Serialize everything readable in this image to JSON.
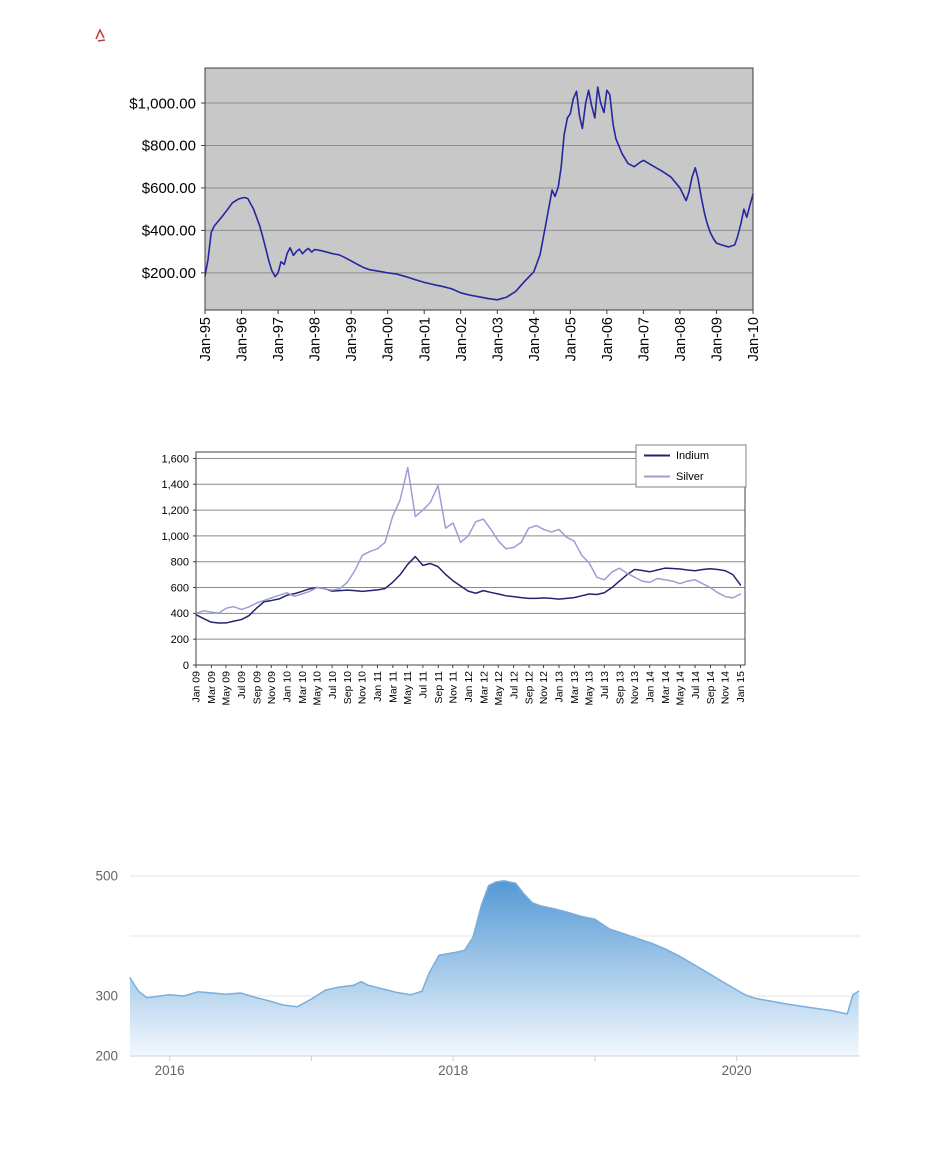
{
  "page": {
    "background": "#ffffff"
  },
  "artifact": {
    "color": "#c43a3a"
  },
  "chart_data": [
    {
      "name": "dollar-price-line-chart",
      "type": "line",
      "title": "",
      "xlabel": "",
      "ylabel": "",
      "xlim": [
        1995,
        2010
      ],
      "ylim": [
        25,
        1165
      ],
      "plot_bg": "#c8c8c8",
      "grid_color": "#909090",
      "border_color": "#3c3c3c",
      "tick_label_color": "#000000",
      "x_tick_marks": true,
      "y_tick_marks": true,
      "y_ticks": [
        {
          "v": 200,
          "label": "$200.00"
        },
        {
          "v": 400,
          "label": "$400.00"
        },
        {
          "v": 600,
          "label": "$600.00"
        },
        {
          "v": 800,
          "label": "$800.00"
        },
        {
          "v": 1000,
          "label": "$1,000.00"
        }
      ],
      "x_ticks": [
        {
          "v": 1995,
          "label": "Jan-95"
        },
        {
          "v": 1996,
          "label": "Jan-96"
        },
        {
          "v": 1997,
          "label": "Jan-97"
        },
        {
          "v": 1998,
          "label": "Jan-98"
        },
        {
          "v": 1999,
          "label": "Jan-99"
        },
        {
          "v": 2000,
          "label": "Jan-00"
        },
        {
          "v": 2001,
          "label": "Jan-01"
        },
        {
          "v": 2002,
          "label": "Jan-02"
        },
        {
          "v": 2003,
          "label": "Jan-03"
        },
        {
          "v": 2004,
          "label": "Jan-04"
        },
        {
          "v": 2005,
          "label": "Jan-05"
        },
        {
          "v": 2006,
          "label": "Jan-06"
        },
        {
          "v": 2007,
          "label": "Jan-07"
        },
        {
          "v": 2008,
          "label": "Jan-08"
        },
        {
          "v": 2009,
          "label": "Jan-09"
        },
        {
          "v": 2010,
          "label": "Jan-10"
        }
      ],
      "series": [
        {
          "name": "price",
          "color": "#2626a0",
          "width": 1.6,
          "x": [
            1995,
            1995.08,
            1995.17,
            1995.25,
            1995.42,
            1995.58,
            1995.75,
            1995.92,
            1996,
            1996.08,
            1996.17,
            1996.33,
            1996.5,
            1996.58,
            1996.67,
            1996.75,
            1996.83,
            1996.92,
            1997,
            1997.08,
            1997.17,
            1997.25,
            1997.33,
            1997.42,
            1997.5,
            1997.58,
            1997.67,
            1997.75,
            1997.83,
            1997.92,
            1998,
            1998.17,
            1998.33,
            1998.5,
            1998.67,
            1998.83,
            1999,
            1999.17,
            1999.33,
            1999.5,
            1999.75,
            2000,
            2000.25,
            2000.5,
            2000.75,
            2001,
            2001.25,
            2001.5,
            2001.75,
            2002,
            2002.25,
            2002.5,
            2002.75,
            2003,
            2003.25,
            2003.5,
            2003.75,
            2004,
            2004.17,
            2004.33,
            2004.5,
            2004.58,
            2004.67,
            2004.75,
            2004.83,
            2004.92,
            2005,
            2005.08,
            2005.17,
            2005.25,
            2005.33,
            2005.42,
            2005.5,
            2005.58,
            2005.67,
            2005.75,
            2005.83,
            2005.92,
            2006,
            2006.08,
            2006.17,
            2006.25,
            2006.42,
            2006.58,
            2006.75,
            2006.92,
            2007,
            2007.25,
            2007.5,
            2007.75,
            2008,
            2008.08,
            2008.17,
            2008.25,
            2008.33,
            2008.42,
            2008.5,
            2008.58,
            2008.67,
            2008.75,
            2008.83,
            2008.92,
            2009,
            2009.17,
            2009.33,
            2009.5,
            2009.58,
            2009.67,
            2009.75,
            2009.83,
            2009.92,
            2010
          ],
          "y": [
            185,
            260,
            390,
            420,
            455,
            490,
            530,
            548,
            552,
            555,
            550,
            500,
            420,
            370,
            310,
            255,
            210,
            182,
            200,
            252,
            240,
            292,
            318,
            282,
            300,
            312,
            290,
            305,
            315,
            298,
            310,
            305,
            298,
            290,
            285,
            272,
            256,
            240,
            226,
            215,
            208,
            200,
            194,
            182,
            168,
            155,
            145,
            136,
            125,
            106,
            95,
            87,
            79,
            73,
            85,
            112,
            160,
            205,
            285,
            430,
            590,
            560,
            605,
            700,
            850,
            930,
            950,
            1020,
            1055,
            940,
            880,
            1000,
            1060,
            990,
            930,
            1075,
            1000,
            955,
            1060,
            1040,
            900,
            830,
            760,
            715,
            700,
            722,
            730,
            705,
            680,
            652,
            600,
            572,
            540,
            582,
            650,
            695,
            640,
            560,
            482,
            430,
            390,
            360,
            340,
            330,
            322,
            332,
            372,
            432,
            500,
            462,
            522,
            570
          ]
        }
      ]
    },
    {
      "name": "indium-silver-line-chart",
      "type": "line",
      "title": "",
      "xlabel": "",
      "ylabel": "",
      "xlim": [
        2009,
        2015.05
      ],
      "ylim": [
        0,
        1650
      ],
      "plot_bg": "#ffffff",
      "grid_color": "#8a8a8a",
      "border_color": "#444444",
      "tick_label_color": "#000000",
      "x_tick_marks": true,
      "y_tick_marks": true,
      "x_start": 2009,
      "x_step": 0.0833333,
      "y_ticks": [
        {
          "v": 0,
          "label": "0"
        },
        {
          "v": 200,
          "label": "200"
        },
        {
          "v": 400,
          "label": "400"
        },
        {
          "v": 600,
          "label": "600"
        },
        {
          "v": 800,
          "label": "800"
        },
        {
          "v": 1000,
          "label": "1,000"
        },
        {
          "v": 1200,
          "label": "1,200"
        },
        {
          "v": 1400,
          "label": "1,400"
        },
        {
          "v": 1600,
          "label": "1,600"
        }
      ],
      "x_ticks": [
        {
          "v": 2009,
          "label": "Jan 09"
        },
        {
          "v": 2009.17,
          "label": "Mar 09"
        },
        {
          "v": 2009.33,
          "label": "May 09"
        },
        {
          "v": 2009.5,
          "label": "Jul 09"
        },
        {
          "v": 2009.67,
          "label": "Sep 09"
        },
        {
          "v": 2009.83,
          "label": "Nov 09"
        },
        {
          "v": 2010,
          "label": "Jan 10"
        },
        {
          "v": 2010.17,
          "label": "Mar 10"
        },
        {
          "v": 2010.33,
          "label": "May 10"
        },
        {
          "v": 2010.5,
          "label": "Jul 10"
        },
        {
          "v": 2010.67,
          "label": "Sep 10"
        },
        {
          "v": 2010.83,
          "label": "Nov 10"
        },
        {
          "v": 2011,
          "label": "Jan 11"
        },
        {
          "v": 2011.17,
          "label": "Mar 11"
        },
        {
          "v": 2011.33,
          "label": "May 11"
        },
        {
          "v": 2011.5,
          "label": "Jul 11"
        },
        {
          "v": 2011.67,
          "label": "Sep 11"
        },
        {
          "v": 2011.83,
          "label": "Nov 11"
        },
        {
          "v": 2012,
          "label": "Jan 12"
        },
        {
          "v": 2012.17,
          "label": "Mar 12"
        },
        {
          "v": 2012.33,
          "label": "May 12"
        },
        {
          "v": 2012.5,
          "label": "Jul 12"
        },
        {
          "v": 2012.67,
          "label": "Sep 12"
        },
        {
          "v": 2012.83,
          "label": "Nov 12"
        },
        {
          "v": 2013,
          "label": "Jan 13"
        },
        {
          "v": 2013.17,
          "label": "Mar 13"
        },
        {
          "v": 2013.33,
          "label": "May 13"
        },
        {
          "v": 2013.5,
          "label": "Jul 13"
        },
        {
          "v": 2013.67,
          "label": "Sep 13"
        },
        {
          "v": 2013.83,
          "label": "Nov 13"
        },
        {
          "v": 2014,
          "label": "Jan 14"
        },
        {
          "v": 2014.17,
          "label": "Mar 14"
        },
        {
          "v": 2014.33,
          "label": "May 14"
        },
        {
          "v": 2014.5,
          "label": "Jul 14"
        },
        {
          "v": 2014.67,
          "label": "Sep 14"
        },
        {
          "v": 2014.83,
          "label": "Nov 14"
        },
        {
          "v": 2015,
          "label": "Jan 15"
        }
      ],
      "legend": {
        "position": "top-right",
        "border": "#808080",
        "entries": [
          {
            "label": "Indium",
            "color": "#23236e"
          },
          {
            "label": "Silver",
            "color": "#9d9dd4"
          }
        ]
      },
      "series": [
        {
          "name": "Indium",
          "color": "#23236e",
          "width": 1.5,
          "values": [
            390,
            360,
            332,
            325,
            326,
            340,
            352,
            382,
            440,
            490,
            500,
            512,
            540,
            552,
            570,
            590,
            600,
            592,
            572,
            576,
            580,
            576,
            570,
            576,
            582,
            592,
            640,
            700,
            780,
            840,
            772,
            786,
            762,
            702,
            652,
            612,
            572,
            556,
            576,
            562,
            550,
            536,
            530,
            522,
            516,
            516,
            520,
            516,
            510,
            516,
            522,
            536,
            550,
            546,
            560,
            600,
            650,
            700,
            740,
            732,
            722,
            736,
            750,
            748,
            744,
            736,
            730,
            740,
            746,
            740,
            730,
            700,
            620
          ]
        },
        {
          "name": "Silver",
          "color": "#9d9dd4",
          "width": 1.5,
          "values": [
            400,
            420,
            410,
            402,
            440,
            452,
            430,
            450,
            480,
            500,
            520,
            540,
            560,
            532,
            550,
            570,
            600,
            590,
            580,
            590,
            640,
            730,
            850,
            880,
            900,
            950,
            1150,
            1280,
            1530,
            1150,
            1200,
            1260,
            1390,
            1060,
            1100,
            950,
            1000,
            1110,
            1130,
            1050,
            960,
            900,
            910,
            950,
            1060,
            1080,
            1050,
            1030,
            1050,
            990,
            960,
            850,
            790,
            680,
            660,
            720,
            750,
            710,
            680,
            650,
            640,
            670,
            660,
            650,
            630,
            650,
            660,
            630,
            600,
            560,
            530,
            520,
            550
          ]
        }
      ]
    },
    {
      "name": "area-chart-2016-2020",
      "type": "area",
      "title": "",
      "xlabel": "",
      "ylabel": "",
      "xlim": [
        2015.72,
        2020.87
      ],
      "ylim": [
        200,
        510
      ],
      "grid_color": "#e6e6e6",
      "axis_color": "#d0d0d0",
      "tick_label_color": "#666666",
      "x_tick_marks": true,
      "y_tick_marks": false,
      "area_fill": {
        "top": "#4b93d2",
        "bottom": "#f2f8fd"
      },
      "y_ticks": [
        {
          "v": 500,
          "label": "500"
        },
        {
          "v": 400,
          "label": ""
        },
        {
          "v": 300,
          "label": "300"
        },
        {
          "v": 200,
          "label": "200",
          "grid": false
        }
      ],
      "x_ticks": [
        {
          "v": 2016,
          "label": "2016"
        },
        {
          "v": 2017,
          "label": ""
        },
        {
          "v": 2018,
          "label": "2018"
        },
        {
          "v": 2019,
          "label": ""
        },
        {
          "v": 2020,
          "label": "2020"
        }
      ],
      "series": [
        {
          "name": "value",
          "color": "#79aede",
          "width": 1.5,
          "x": [
            2015.72,
            2015.78,
            2015.84,
            2015.93,
            2016,
            2016.1,
            2016.2,
            2016.3,
            2016.4,
            2016.5,
            2016.6,
            2016.7,
            2016.8,
            2016.9,
            2017,
            2017.1,
            2017.2,
            2017.3,
            2017.35,
            2017.4,
            2017.5,
            2017.6,
            2017.7,
            2017.78,
            2017.83,
            2017.9,
            2018,
            2018.08,
            2018.14,
            2018.2,
            2018.25,
            2018.3,
            2018.36,
            2018.44,
            2018.5,
            2018.56,
            2018.62,
            2018.7,
            2018.8,
            2018.9,
            2019,
            2019.1,
            2019.2,
            2019.3,
            2019.4,
            2019.5,
            2019.6,
            2019.7,
            2019.8,
            2019.9,
            2020,
            2020.06,
            2020.12,
            2020.18,
            2020.25,
            2020.32,
            2020.4,
            2020.48,
            2020.54,
            2020.6,
            2020.66,
            2020.72,
            2020.78,
            2020.82,
            2020.86
          ],
          "y": [
            330,
            308,
            297,
            300,
            302,
            300,
            307,
            305,
            303,
            305,
            298,
            292,
            285,
            282,
            295,
            310,
            315,
            318,
            324,
            318,
            312,
            306,
            302,
            308,
            338,
            368,
            372,
            376,
            398,
            452,
            484,
            490,
            492,
            488,
            470,
            455,
            450,
            446,
            440,
            433,
            428,
            412,
            404,
            396,
            388,
            378,
            366,
            352,
            338,
            324,
            310,
            302,
            297,
            294,
            291,
            288,
            285,
            282,
            280,
            278,
            276,
            273,
            270,
            302,
            308
          ]
        }
      ]
    }
  ]
}
